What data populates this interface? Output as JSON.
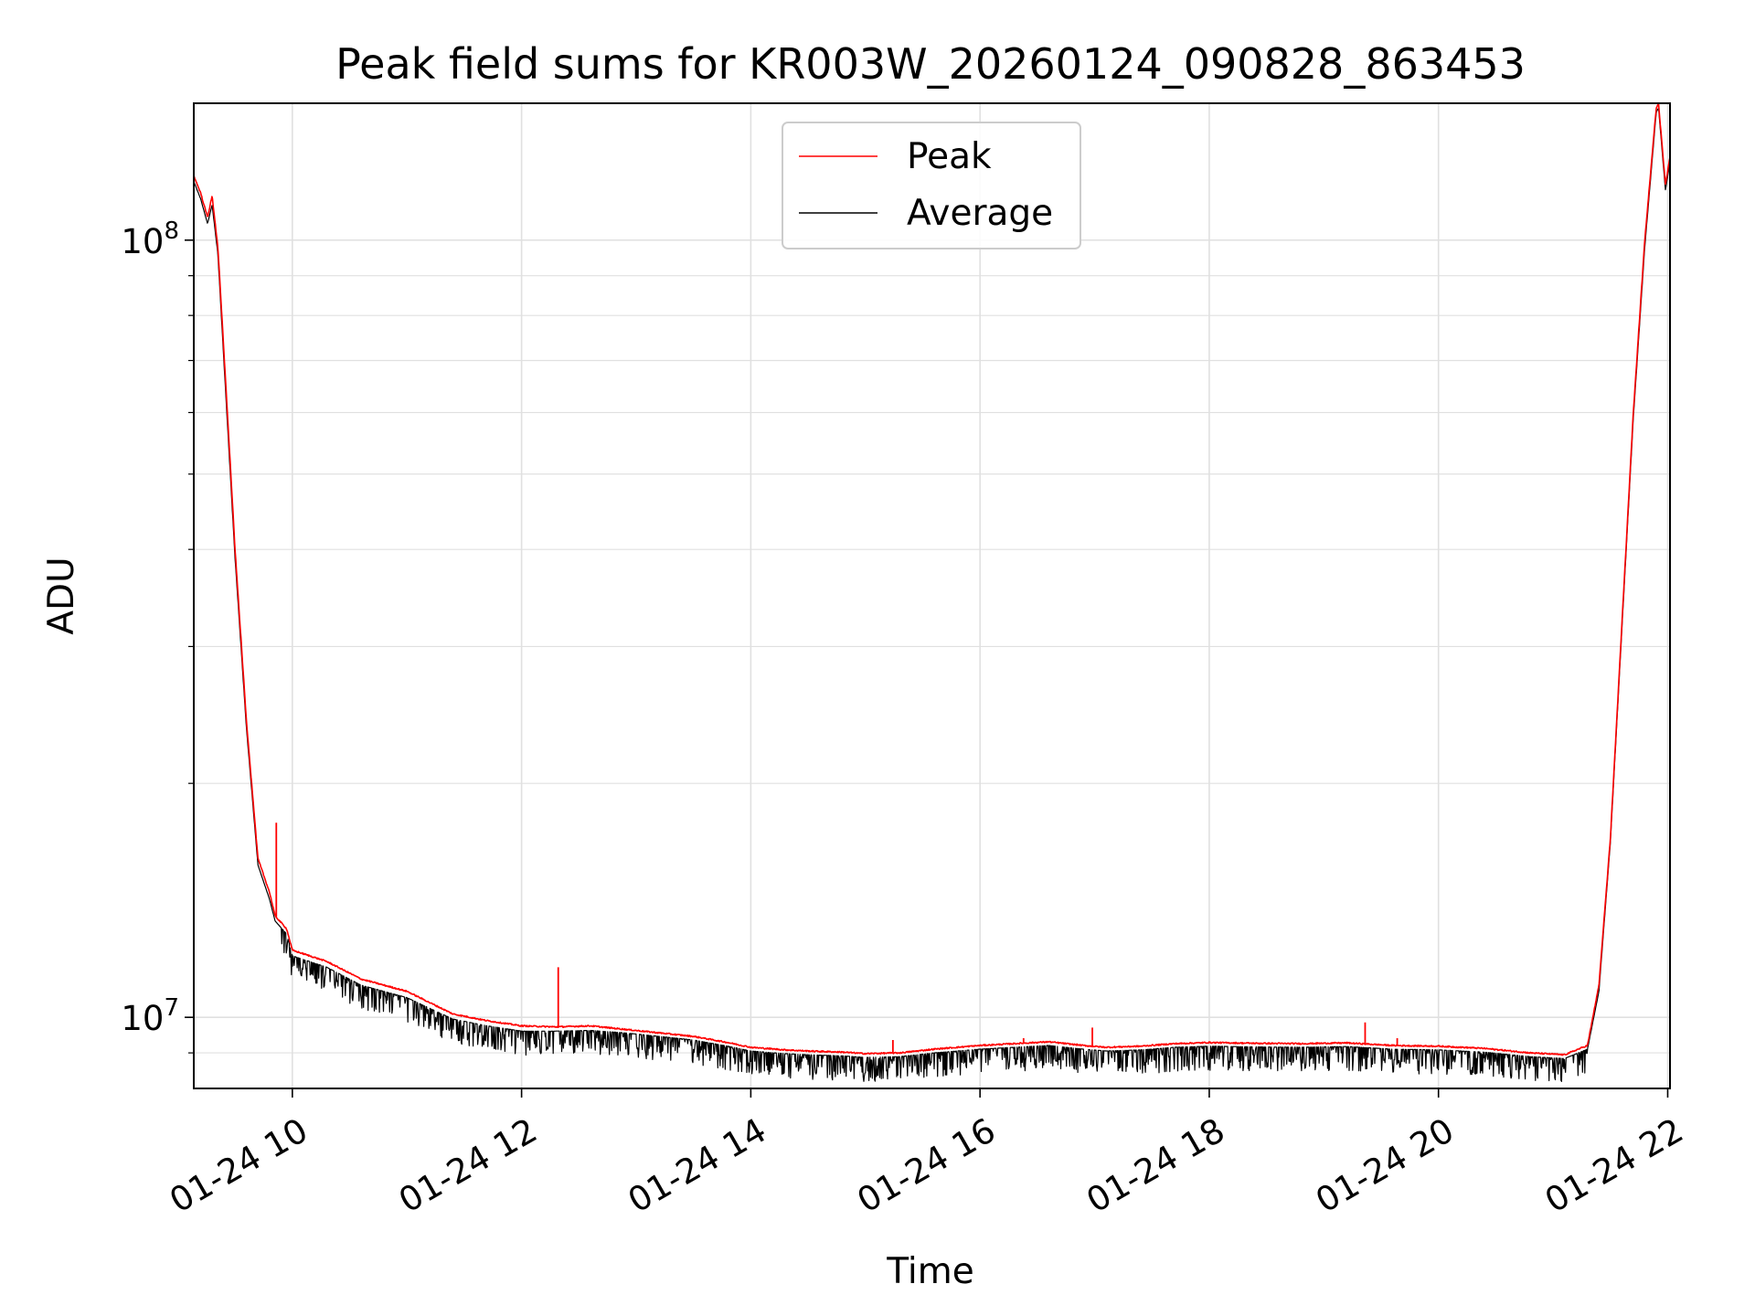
{
  "chart_data": {
    "type": "line",
    "title": "Peak field sums for KR003W_20260124_090828_863453",
    "xlabel": "Time",
    "ylabel": "ADU",
    "yscale": "log",
    "xlim": [
      9.14,
      22.02
    ],
    "ylim": [
      8100000.0,
      150000000.0
    ],
    "grid": true,
    "legend_location": "upper center",
    "colors": {
      "peak": "#ff0000",
      "average": "#000000",
      "grid": "#e0e0e0",
      "legend_border": "#cccccc"
    },
    "x_ticks": [
      {
        "value": 10,
        "label": "01-24 10"
      },
      {
        "value": 12,
        "label": "01-24 12"
      },
      {
        "value": 14,
        "label": "01-24 14"
      },
      {
        "value": 16,
        "label": "01-24 16"
      },
      {
        "value": 18,
        "label": "01-24 18"
      },
      {
        "value": 20,
        "label": "01-24 20"
      },
      {
        "value": 22,
        "label": "01-24 22"
      }
    ],
    "y_major_ticks": [
      {
        "value": 10000000,
        "base": "10",
        "exp": "7"
      },
      {
        "value": 100000000,
        "base": "10",
        "exp": "8"
      }
    ],
    "y_minor_ticks": [
      9000000,
      20000000,
      30000000,
      40000000,
      50000000,
      60000000,
      70000000,
      80000000,
      90000000
    ],
    "series": [
      {
        "name": "Peak",
        "color": "#ff0000",
        "x": [
          9.14,
          9.2,
          9.26,
          9.3,
          9.35,
          9.42,
          9.5,
          9.6,
          9.7,
          9.8,
          9.85,
          9.95,
          10.0,
          10.3,
          10.6,
          11.0,
          11.4,
          11.7,
          12.0,
          12.3,
          12.6,
          12.9,
          13.2,
          13.5,
          13.8,
          14.0,
          14.3,
          14.5,
          14.8,
          15.0,
          15.3,
          15.6,
          16.0,
          16.3,
          16.6,
          16.9,
          17.1,
          17.4,
          17.7,
          18.0,
          18.4,
          18.8,
          19.2,
          19.6,
          20.0,
          20.4,
          20.8,
          21.1,
          21.3,
          21.4,
          21.5,
          21.6,
          21.7,
          21.8,
          21.9,
          21.92,
          21.98,
          22.02
        ],
        "y": [
          121000000,
          115000000,
          107000000,
          114000000,
          98000000,
          65000000,
          40000000,
          24000000,
          16000000,
          14500000,
          13500000,
          13000000,
          12200000,
          11800000,
          11200000,
          10800000,
          10100000,
          9900000,
          9750000,
          9720000,
          9750000,
          9650000,
          9550000,
          9450000,
          9280000,
          9150000,
          9080000,
          9050000,
          9020000,
          8980000,
          9000000,
          9100000,
          9200000,
          9250000,
          9300000,
          9200000,
          9150000,
          9180000,
          9250000,
          9280000,
          9260000,
          9250000,
          9270000,
          9200000,
          9180000,
          9120000,
          9000000,
          8950000,
          9200000,
          11000000,
          17000000,
          32000000,
          60000000,
          100000000,
          148000000,
          150000000,
          118000000,
          128000000
        ]
      },
      {
        "name": "Average",
        "color": "#000000",
        "x": [
          9.14,
          9.2,
          9.26,
          9.3,
          9.35,
          9.42,
          9.5,
          9.6,
          9.7,
          9.8,
          9.85,
          9.95,
          10.0,
          10.3,
          10.6,
          11.0,
          11.4,
          11.7,
          12.0,
          12.3,
          12.6,
          12.9,
          13.2,
          13.5,
          13.8,
          14.0,
          14.3,
          14.5,
          14.8,
          15.0,
          15.3,
          15.6,
          16.0,
          16.3,
          16.6,
          16.9,
          17.1,
          17.4,
          17.7,
          18.0,
          18.4,
          18.8,
          19.2,
          19.6,
          20.0,
          20.4,
          20.8,
          21.1,
          21.3,
          21.4,
          21.5,
          21.6,
          21.7,
          21.8,
          21.9,
          21.92,
          21.98,
          22.02
        ],
        "y": [
          119000000,
          113000000,
          105000000,
          111000000,
          96000000,
          63000000,
          39000000,
          23500000,
          15700000,
          14200000,
          13300000,
          12800000,
          12000000,
          11600000,
          11000000,
          10600000,
          9950000,
          9750000,
          9600000,
          9600000,
          9620000,
          9550000,
          9450000,
          9350000,
          9180000,
          9050000,
          8980000,
          8950000,
          8920000,
          8880000,
          8900000,
          9000000,
          9100000,
          9150000,
          9200000,
          9100000,
          9050000,
          9080000,
          9150000,
          9180000,
          9160000,
          9150000,
          9170000,
          9100000,
          9080000,
          9020000,
          8900000,
          8850000,
          9100000,
          10800000,
          16800000,
          31500000,
          59000000,
          98000000,
          146000000,
          148000000,
          116000000,
          126000000
        ]
      }
    ],
    "spikes": [
      {
        "series": "Peak",
        "x": 9.86,
        "y": 17800000
      },
      {
        "series": "Peak",
        "x": 12.32,
        "y": 11600000
      },
      {
        "series": "Peak",
        "x": 15.24,
        "y": 9350000
      },
      {
        "series": "Peak",
        "x": 16.38,
        "y": 9400000
      },
      {
        "series": "Peak",
        "x": 16.98,
        "y": 9700000
      },
      {
        "series": "Peak",
        "x": 19.36,
        "y": 9850000
      },
      {
        "series": "Peak",
        "x": 19.64,
        "y": 9400000
      }
    ]
  }
}
